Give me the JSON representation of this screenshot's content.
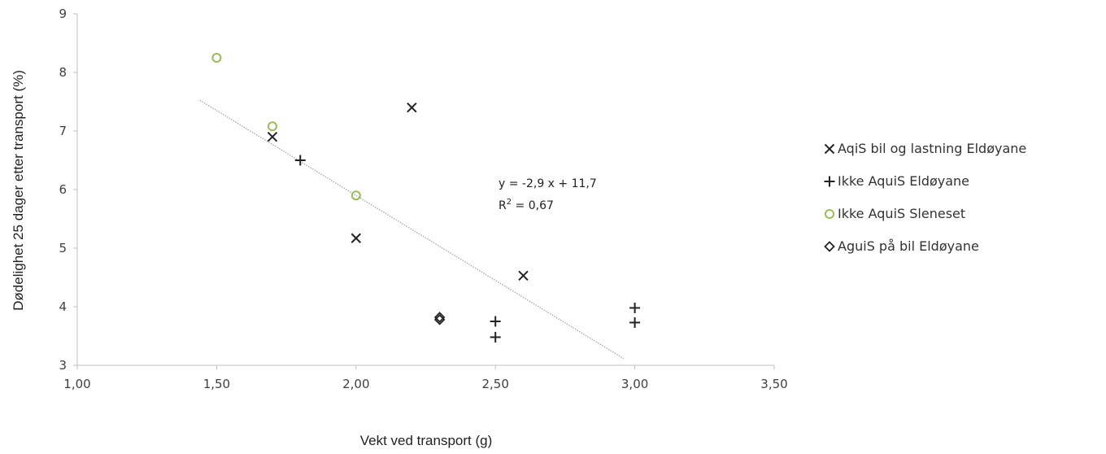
{
  "chart_data": {
    "type": "scatter",
    "xlabel": "Vekt ved transport (g)",
    "ylabel": "Dødelighet 25 dager etter transport (%)",
    "xlim": [
      1.0,
      3.5
    ],
    "ylim": [
      3,
      9
    ],
    "x_ticks": [
      "1,00",
      "1,50",
      "2,00",
      "2,50",
      "3,00",
      "3,50"
    ],
    "y_ticks": [
      "3",
      "4",
      "5",
      "6",
      "7",
      "8",
      "9"
    ],
    "grid": false,
    "legend": "right",
    "series": [
      {
        "name": "AqiS bil og lastning Eldøyane",
        "marker": "x",
        "color": "#222222",
        "points": [
          [
            1.7,
            6.9
          ],
          [
            2.2,
            7.4
          ],
          [
            2.0,
            5.17
          ],
          [
            2.6,
            4.53
          ]
        ]
      },
      {
        "name": "Ikke AquiS Eldøyane",
        "marker": "+",
        "color": "#222222",
        "points": [
          [
            1.8,
            6.5
          ],
          [
            2.5,
            3.75
          ],
          [
            2.5,
            3.48
          ],
          [
            3.0,
            3.98
          ],
          [
            3.0,
            3.73
          ]
        ]
      },
      {
        "name": "Ikke AquiS Sleneset",
        "marker": "circle",
        "color": "#9bbb59",
        "points": [
          [
            1.5,
            8.25
          ],
          [
            1.7,
            7.08
          ],
          [
            2.0,
            5.9
          ]
        ]
      },
      {
        "name": "AguiS på bil Eldøyane",
        "marker": "diamond",
        "color": "#222222",
        "points": [
          [
            2.3,
            3.82
          ],
          [
            2.3,
            3.78
          ]
        ]
      }
    ],
    "trendline": {
      "slope": -2.9,
      "intercept": 11.7,
      "x_range": [
        1.44,
        2.96
      ],
      "color": "#a6a6a6",
      "style": "dotted"
    },
    "annotations": {
      "equation": "y = -2,9 x + 11,7",
      "r2_prefix": "R",
      "r2_sup": "2",
      "r2_value": " = 0,67"
    }
  }
}
